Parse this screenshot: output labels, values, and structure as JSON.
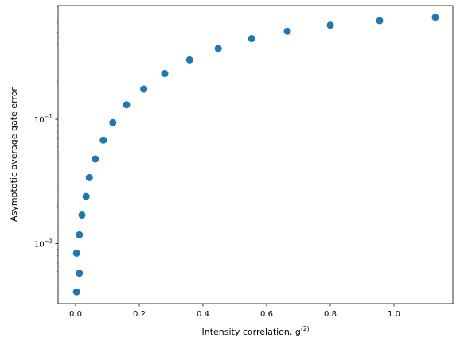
{
  "chart_data": {
    "type": "scatter",
    "title": "",
    "xlabel": "Intensity correlation, g",
    "xlabel_superscript": "(2)",
    "ylabel": "Asymptotic average gate error",
    "xlim": [
      -0.055,
      1.185
    ],
    "ylim": [
      0.0033,
      0.82
    ],
    "yscale": "log",
    "grid": false,
    "legend": "none",
    "marker_color": "#1f77b4",
    "x_ticks": [
      {
        "value": 0.0,
        "label": "0.0"
      },
      {
        "value": 0.2,
        "label": "0.2"
      },
      {
        "value": 0.4,
        "label": "0.4"
      },
      {
        "value": 0.6,
        "label": "0.6"
      },
      {
        "value": 0.8,
        "label": "0.8"
      },
      {
        "value": 1.0,
        "label": "1.0"
      }
    ],
    "y_ticks": [
      {
        "value": 0.01,
        "base": "10",
        "exp": "−2"
      },
      {
        "value": 0.1,
        "base": "10",
        "exp": "−1"
      }
    ],
    "series": [
      {
        "points": [
          {
            "x": 0.003,
            "y": 0.0041
          },
          {
            "x": 0.003,
            "y": 0.0084
          },
          {
            "x": 0.012,
            "y": 0.0058
          },
          {
            "x": 0.012,
            "y": 0.0118
          },
          {
            "x": 0.02,
            "y": 0.017
          },
          {
            "x": 0.033,
            "y": 0.024
          },
          {
            "x": 0.043,
            "y": 0.034
          },
          {
            "x": 0.062,
            "y": 0.048
          },
          {
            "x": 0.087,
            "y": 0.068
          },
          {
            "x": 0.117,
            "y": 0.094
          },
          {
            "x": 0.16,
            "y": 0.131
          },
          {
            "x": 0.214,
            "y": 0.175
          },
          {
            "x": 0.28,
            "y": 0.233
          },
          {
            "x": 0.358,
            "y": 0.3
          },
          {
            "x": 0.448,
            "y": 0.37
          },
          {
            "x": 0.553,
            "y": 0.445
          },
          {
            "x": 0.665,
            "y": 0.51
          },
          {
            "x": 0.8,
            "y": 0.57
          },
          {
            "x": 0.955,
            "y": 0.62
          },
          {
            "x": 1.13,
            "y": 0.66
          }
        ]
      }
    ]
  }
}
